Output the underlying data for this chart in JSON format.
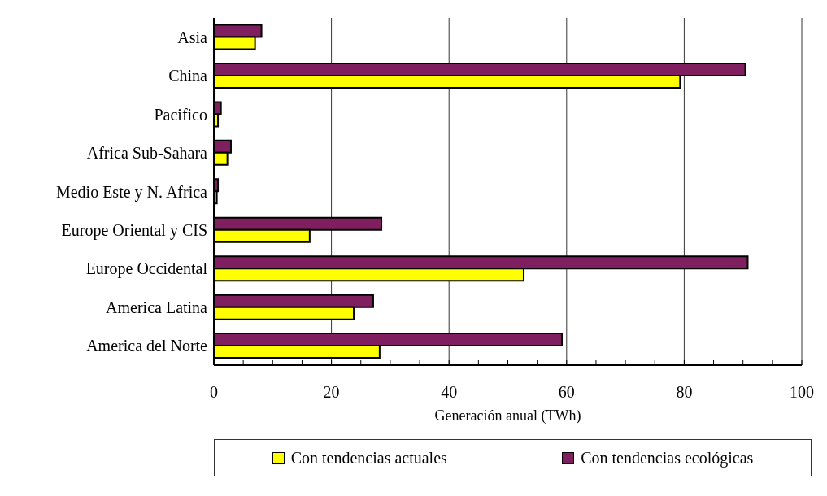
{
  "chart_data": {
    "type": "bar",
    "orientation": "horizontal",
    "xlabel": "Generación anual (TWh)",
    "categories": [
      "Asia",
      "China",
      "Pacifico",
      "Africa  Sub-Sahara",
      "Medio Este y  N. Africa",
      "Europe Oriental y  CIS",
      "Europe Occidental",
      "America Latina",
      "America del Norte"
    ],
    "series": [
      {
        "name": "Con tendencias actuales",
        "color": "#ffff00",
        "values": [
          7.0,
          79.3,
          0.7,
          2.3,
          0.5,
          16.3,
          52.7,
          23.8,
          28.2
        ]
      },
      {
        "name": "Con  tendencias ecológicas",
        "color": "#7f1f5f",
        "values": [
          8.1,
          90.4,
          1.2,
          2.9,
          0.7,
          28.5,
          90.8,
          27.1,
          59.2
        ]
      }
    ],
    "xlim": [
      0,
      100
    ],
    "xticks": [
      0,
      {
        "value": 5,
        "label": null
      },
      {
        "value": 10,
        "label": null
      },
      {
        "value": 15,
        "label": null
      },
      20,
      {
        "value": 25,
        "label": null
      },
      {
        "value": 30,
        "label": null
      },
      {
        "value": 35,
        "label": null
      },
      40,
      {
        "value": 45,
        "label": null
      },
      {
        "value": 50,
        "label": null
      },
      {
        "value": 55,
        "label": null
      },
      60,
      {
        "value": 65,
        "label": null
      },
      {
        "value": 70,
        "label": null
      },
      {
        "value": 75,
        "label": null
      },
      80,
      {
        "value": 85,
        "label": null
      },
      {
        "value": 90,
        "label": null
      },
      {
        "value": 95,
        "label": null
      },
      100
    ],
    "grid": "x",
    "legend": "bottom"
  }
}
